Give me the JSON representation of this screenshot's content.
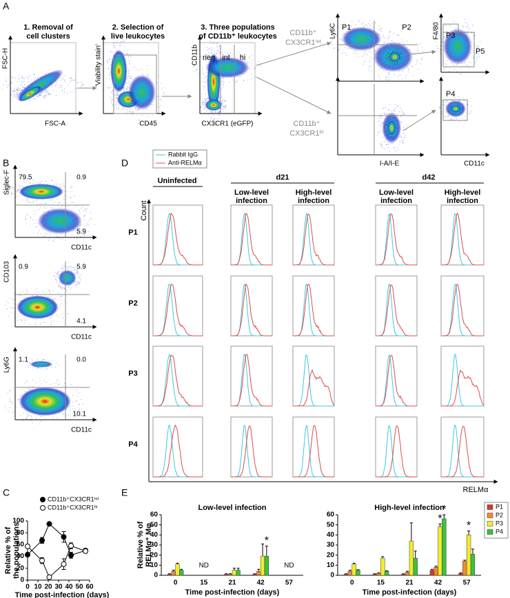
{
  "panel_a": {
    "label": "A",
    "steps": [
      {
        "title": [
          "1. Removal of",
          "cell clusters"
        ],
        "y_label": "FSC-H",
        "x_label": "FSC-A"
      },
      {
        "title": [
          "2. Selection of",
          "live leukocytes"
        ],
        "y_label": "'Viability stain'",
        "x_label": "CD45"
      },
      {
        "title": [
          "3. Three populations",
          "of CD11b⁺ leukocytes"
        ],
        "y_label": "CD11b",
        "x_label": "CX3CR1 (eGFP)",
        "gates": [
          "neg",
          "int",
          "hi"
        ]
      }
    ],
    "branches": [
      {
        "label": [
          "CD11b⁺",
          "CX3CR1ⁱⁿᵗ"
        ],
        "y_label": "Ly6C",
        "gates": [
          "P1",
          "P2"
        ]
      },
      {
        "label": [
          "CD11b⁺",
          "CX3CR1ʰⁱ"
        ],
        "x_label": "I-A/I-E"
      }
    ],
    "subsets": [
      {
        "y_label": "F4/80",
        "gates": [
          "P3",
          "P5"
        ]
      },
      {
        "gates": [
          "P4"
        ],
        "x_label": "CD11c"
      }
    ]
  },
  "panel_b": {
    "label": "B",
    "plots": [
      {
        "y_label": "Siglec-F",
        "x_label": "CD11c",
        "upper_left": "79.5",
        "upper_right": "0.9",
        "lower_right": "5.9"
      },
      {
        "y_label": "CD103",
        "x_label": "CD11c",
        "upper_left": "0.9",
        "upper_right": "5.9",
        "lower_right": "4.1"
      },
      {
        "y_label": "Ly6G",
        "x_label": "CD11c",
        "upper_left": "1.1",
        "upper_right": "0.0",
        "lower_right": "10.1"
      }
    ]
  },
  "panel_d": {
    "label": "D",
    "legend": [
      {
        "name": "Rabbit IgG",
        "color": "#3cc8e0"
      },
      {
        "name": "Anti-RELMα",
        "color": "#e04848"
      }
    ],
    "groups": [
      {
        "title": "Uninfected"
      },
      {
        "title": "d21",
        "columns": [
          [
            "Low-level",
            "infection"
          ],
          [
            "High-level",
            "infection"
          ]
        ]
      },
      {
        "title": "d42",
        "columns": [
          [
            "Low-level",
            "infection"
          ],
          [
            "High-level",
            "infection"
          ]
        ]
      }
    ],
    "rows": [
      "P1",
      "P2",
      "P3",
      "P4"
    ],
    "y_label": "Count",
    "x_label": "RELMα"
  },
  "chart_data": [
    {
      "type": "line",
      "panel_label": "C",
      "x_label": "Time post-infection (days)",
      "y_label": [
        "Relative % of",
        "the populations"
      ],
      "xlim": [
        0,
        60
      ],
      "xticks": [
        0,
        10,
        20,
        30,
        40,
        50,
        60
      ],
      "ylim": [
        0,
        100
      ],
      "yticks": [
        0,
        20,
        40,
        60,
        80,
        100
      ],
      "series": [
        {
          "name": "CD11b⁺CX3CR1ⁱⁿᵗ",
          "color": "#000000",
          "marker": "filled",
          "x": [
            0,
            14,
            21,
            35,
            42,
            56
          ],
          "values": [
            43,
            67,
            95,
            73,
            42,
            50
          ],
          "errors": [
            3,
            5,
            2,
            9,
            5,
            3
          ]
        },
        {
          "name": "CD11b⁺CX3CR1ʰⁱ",
          "color": "#000000",
          "marker": "open",
          "x": [
            0,
            14,
            21,
            35,
            42,
            56
          ],
          "values": [
            57,
            33,
            5,
            27,
            58,
            49
          ],
          "errors": [
            3,
            5,
            2,
            9,
            5,
            3
          ]
        }
      ]
    },
    {
      "type": "bar",
      "panel_label": "E",
      "title": "Low-level infection",
      "y_label": [
        "Relative % of",
        "RELMα⁺ Mφ"
      ],
      "x_label": "Time post-infection (days)",
      "categories": [
        "0",
        "15",
        "21",
        "42",
        "57"
      ],
      "ylim": [
        0,
        60
      ],
      "yticks": [
        0,
        10,
        20,
        30,
        40,
        50,
        60
      ],
      "series": [
        {
          "color": "#d63a2a",
          "values": [
            1,
            null,
            1,
            1,
            null
          ],
          "errors": [
            0.5,
            null,
            0.5,
            0.5,
            null
          ]
        },
        {
          "color": "#f08a30",
          "values": [
            4,
            null,
            1,
            4,
            null
          ],
          "errors": [
            1,
            null,
            0.5,
            2,
            null
          ]
        },
        {
          "color": "#f3ec2c",
          "values": [
            11,
            null,
            5,
            19,
            null
          ],
          "errors": [
            1,
            null,
            2,
            12,
            null
          ]
        },
        {
          "color": "#3cc23c",
          "values": [
            5,
            null,
            5,
            19,
            null
          ],
          "errors": [
            1,
            null,
            2,
            10,
            null
          ]
        }
      ],
      "annotations": [
        {
          "text": "ND",
          "category": 1
        },
        {
          "text": "ND",
          "category": 4
        },
        {
          "text": "*",
          "category": 3,
          "series": 3
        }
      ]
    },
    {
      "type": "bar",
      "title": "High-level infection",
      "x_label": "Time post-infection (days)",
      "categories": [
        "0",
        "15",
        "21",
        "42",
        "57"
      ],
      "ylim": [
        0,
        60
      ],
      "yticks": [
        0,
        10,
        20,
        30,
        40,
        50,
        60
      ],
      "series": [
        {
          "name": "P1",
          "color": "#d63a2a",
          "values": [
            1,
            1,
            1,
            5,
            2
          ],
          "errors": [
            0.5,
            0.5,
            0.5,
            1,
            0.5
          ]
        },
        {
          "name": "P2",
          "color": "#f08a30",
          "values": [
            4,
            2,
            3,
            8,
            14
          ],
          "errors": [
            1,
            0.5,
            1,
            1,
            1
          ]
        },
        {
          "name": "P3",
          "color": "#f3ec2c",
          "values": [
            11,
            17,
            34,
            48,
            40
          ],
          "errors": [
            1,
            1.5,
            18,
            3,
            4
          ]
        },
        {
          "name": "P4",
          "color": "#3cc23c",
          "values": [
            5,
            4,
            17,
            56,
            21
          ],
          "errors": [
            0.5,
            0.5,
            7,
            4,
            5
          ]
        }
      ],
      "annotations": [
        {
          "text": "*",
          "category": 3,
          "series": 2
        },
        {
          "text": "*",
          "category": 3,
          "series": 3
        },
        {
          "text": "*",
          "category": 4,
          "series": 2
        }
      ]
    }
  ]
}
